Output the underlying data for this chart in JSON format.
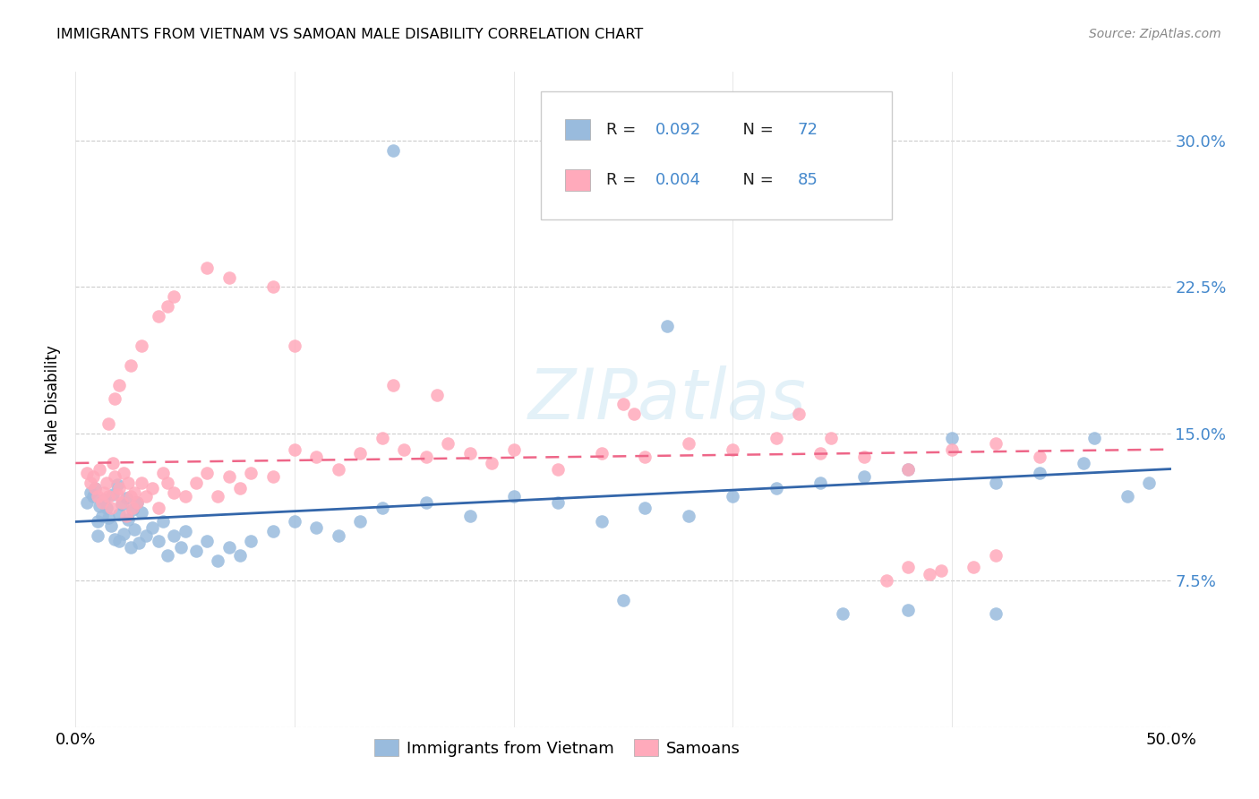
{
  "title": "IMMIGRANTS FROM VIETNAM VS SAMOAN MALE DISABILITY CORRELATION CHART",
  "source": "Source: ZipAtlas.com",
  "ylabel": "Male Disability",
  "xlim": [
    0.0,
    0.5
  ],
  "ylim": [
    0.0,
    0.335
  ],
  "watermark": "ZIPatlas",
  "legend_labels": [
    "Immigrants from Vietnam",
    "Samoans"
  ],
  "blue_color": "#99BBDD",
  "pink_color": "#FFAABB",
  "blue_line_color": "#3366AA",
  "pink_line_color": "#EE6688",
  "ytick_vals": [
    0.0,
    0.075,
    0.15,
    0.225,
    0.3
  ],
  "ytick_labels": [
    "",
    "7.5%",
    "15.0%",
    "22.5%",
    "30.0%"
  ],
  "xtick_vals": [
    0.0,
    0.1,
    0.2,
    0.3,
    0.4,
    0.5
  ],
  "xtick_labels": [
    "0.0%",
    "",
    "",
    "",
    "",
    "50.0%"
  ],
  "blue_x": [
    0.005,
    0.007,
    0.008,
    0.009,
    0.01,
    0.01,
    0.011,
    0.012,
    0.013,
    0.014,
    0.015,
    0.016,
    0.017,
    0.018,
    0.019,
    0.02,
    0.02,
    0.021,
    0.022,
    0.023,
    0.024,
    0.025,
    0.026,
    0.027,
    0.028,
    0.029,
    0.03,
    0.032,
    0.035,
    0.038,
    0.04,
    0.042,
    0.045,
    0.048,
    0.05,
    0.055,
    0.06,
    0.065,
    0.07,
    0.075,
    0.08,
    0.09,
    0.1,
    0.11,
    0.12,
    0.13,
    0.14,
    0.16,
    0.18,
    0.2,
    0.22,
    0.24,
    0.26,
    0.28,
    0.3,
    0.32,
    0.34,
    0.36,
    0.38,
    0.4,
    0.42,
    0.44,
    0.46,
    0.48,
    0.49,
    0.145,
    0.27,
    0.465,
    0.25,
    0.35,
    0.42,
    0.38
  ],
  "blue_y": [
    0.115,
    0.12,
    0.118,
    0.122,
    0.105,
    0.098,
    0.113,
    0.108,
    0.116,
    0.112,
    0.107,
    0.103,
    0.119,
    0.096,
    0.124,
    0.109,
    0.095,
    0.114,
    0.099,
    0.117,
    0.106,
    0.092,
    0.111,
    0.101,
    0.115,
    0.094,
    0.11,
    0.098,
    0.102,
    0.095,
    0.105,
    0.088,
    0.098,
    0.092,
    0.1,
    0.09,
    0.095,
    0.085,
    0.092,
    0.088,
    0.095,
    0.1,
    0.105,
    0.102,
    0.098,
    0.105,
    0.112,
    0.115,
    0.108,
    0.118,
    0.115,
    0.105,
    0.112,
    0.108,
    0.118,
    0.122,
    0.125,
    0.128,
    0.132,
    0.148,
    0.125,
    0.13,
    0.135,
    0.118,
    0.125,
    0.295,
    0.205,
    0.148,
    0.065,
    0.058,
    0.058,
    0.06
  ],
  "pink_x": [
    0.005,
    0.007,
    0.008,
    0.009,
    0.01,
    0.011,
    0.012,
    0.013,
    0.014,
    0.015,
    0.016,
    0.017,
    0.018,
    0.019,
    0.02,
    0.021,
    0.022,
    0.023,
    0.024,
    0.025,
    0.026,
    0.027,
    0.028,
    0.03,
    0.032,
    0.035,
    0.038,
    0.04,
    0.042,
    0.045,
    0.05,
    0.055,
    0.06,
    0.065,
    0.07,
    0.075,
    0.08,
    0.09,
    0.1,
    0.11,
    0.12,
    0.13,
    0.14,
    0.15,
    0.16,
    0.17,
    0.18,
    0.19,
    0.2,
    0.22,
    0.24,
    0.26,
    0.28,
    0.3,
    0.32,
    0.34,
    0.36,
    0.38,
    0.4,
    0.42,
    0.44,
    0.06,
    0.07,
    0.09,
    0.1,
    0.145,
    0.165,
    0.25,
    0.255,
    0.33,
    0.345,
    0.38,
    0.39,
    0.41,
    0.42,
    0.395,
    0.37,
    0.045,
    0.042,
    0.038,
    0.03,
    0.025,
    0.02,
    0.018,
    0.015
  ],
  "pink_y": [
    0.13,
    0.125,
    0.128,
    0.122,
    0.118,
    0.132,
    0.115,
    0.12,
    0.125,
    0.118,
    0.112,
    0.135,
    0.128,
    0.119,
    0.122,
    0.115,
    0.13,
    0.108,
    0.125,
    0.118,
    0.112,
    0.12,
    0.115,
    0.125,
    0.118,
    0.122,
    0.112,
    0.13,
    0.125,
    0.12,
    0.118,
    0.125,
    0.13,
    0.118,
    0.128,
    0.122,
    0.13,
    0.128,
    0.142,
    0.138,
    0.132,
    0.14,
    0.148,
    0.142,
    0.138,
    0.145,
    0.14,
    0.135,
    0.142,
    0.132,
    0.14,
    0.138,
    0.145,
    0.142,
    0.148,
    0.14,
    0.138,
    0.132,
    0.142,
    0.145,
    0.138,
    0.235,
    0.23,
    0.225,
    0.195,
    0.175,
    0.17,
    0.165,
    0.16,
    0.16,
    0.148,
    0.082,
    0.078,
    0.082,
    0.088,
    0.08,
    0.075,
    0.22,
    0.215,
    0.21,
    0.195,
    0.185,
    0.175,
    0.168,
    0.155
  ],
  "blue_line_x0": 0.0,
  "blue_line_x1": 0.5,
  "blue_line_y0": 0.105,
  "blue_line_y1": 0.132,
  "pink_line_x0": 0.0,
  "pink_line_x1": 0.5,
  "pink_line_y0": 0.135,
  "pink_line_y1": 0.142
}
